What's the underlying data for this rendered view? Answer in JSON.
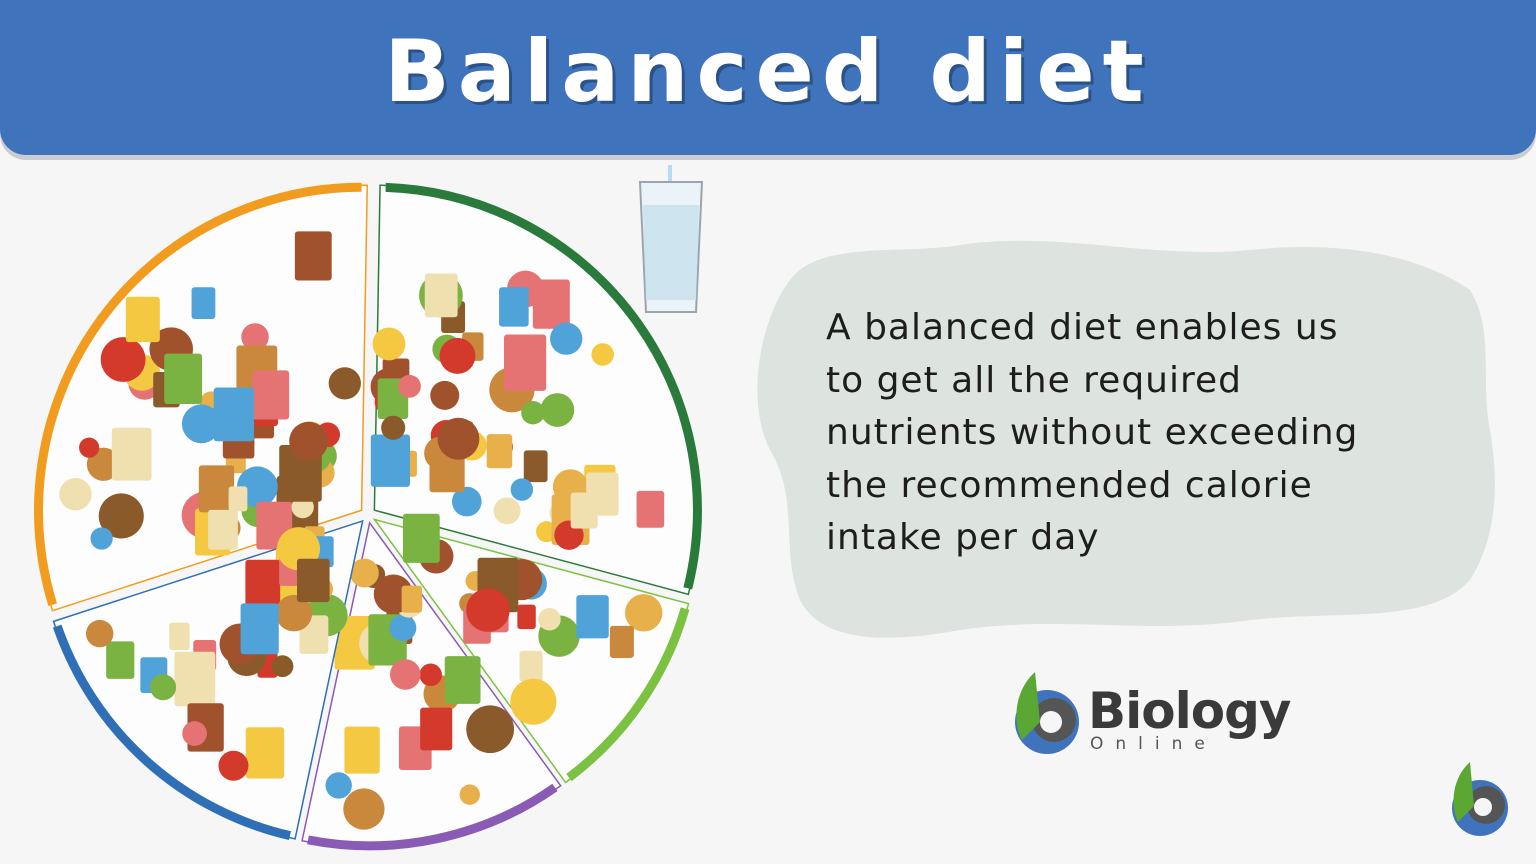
{
  "header": {
    "title": "Balanced diet"
  },
  "description": {
    "lines": [
      "A balanced diet enables us",
      "to get all the required",
      "nutrients without exceeding",
      "the recommended calorie",
      "intake per day"
    ]
  },
  "logo": {
    "name": "Biology",
    "subtitle": "Online"
  }
}
